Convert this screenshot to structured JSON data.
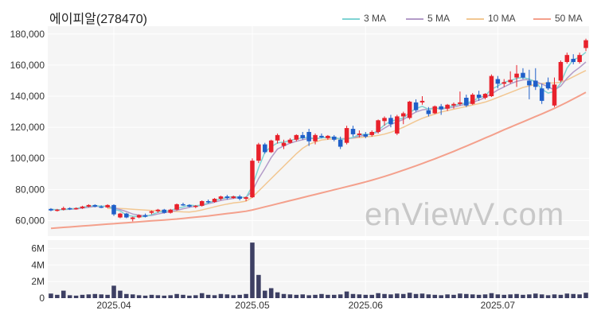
{
  "title": "에이피알(278470)",
  "watermark": "enViewV.com",
  "legend": [
    {
      "label": "3 MA",
      "color": "#7fd3d3"
    },
    {
      "label": "5 MA",
      "color": "#b39bc8"
    },
    {
      "label": "10 MA",
      "color": "#f2c792"
    },
    {
      "label": "50 MA",
      "color": "#f4a08c"
    }
  ],
  "chart_data": [
    {
      "type": "candlestick",
      "title": "에이피알(278470)",
      "ylim": [
        50000,
        185000
      ],
      "y_ticks": [
        60000,
        80000,
        100000,
        120000,
        140000,
        160000,
        180000
      ],
      "y_tick_labels": [
        "60,000",
        "80,000",
        "100,000",
        "120,000",
        "140,000",
        "160,000",
        "180,000"
      ],
      "x_ticks": [
        {
          "label": "2025.04",
          "index": 10
        },
        {
          "label": "2025.05",
          "index": 32
        },
        {
          "label": "2025.06",
          "index": 50
        },
        {
          "label": "2025.07",
          "index": 71
        }
      ],
      "up_color": "#e8212b",
      "down_color": "#1f5fc9",
      "candles": [
        [
          67500,
          68000,
          66000,
          66500
        ],
        [
          66500,
          67500,
          65800,
          67000
        ],
        [
          67000,
          69000,
          66500,
          68000
        ],
        [
          68000,
          68500,
          66800,
          67500
        ],
        [
          67500,
          68500,
          67000,
          68000
        ],
        [
          68000,
          69500,
          67500,
          69000
        ],
        [
          69000,
          70500,
          68500,
          70000
        ],
        [
          70000,
          70500,
          68500,
          69000
        ],
        [
          69000,
          69800,
          68000,
          68500
        ],
        [
          68500,
          70500,
          68000,
          70000
        ],
        [
          70000,
          70500,
          63000,
          64000
        ],
        [
          62000,
          65000,
          61500,
          64500
        ],
        [
          64500,
          65000,
          61500,
          62000
        ],
        [
          61000,
          62500,
          59500,
          62000
        ],
        [
          62000,
          64000,
          61500,
          63500
        ],
        [
          63500,
          64500,
          62000,
          62500
        ],
        [
          65000,
          66500,
          64000,
          66000
        ],
        [
          66000,
          67500,
          65000,
          67000
        ],
        [
          67000,
          67500,
          64500,
          65000
        ],
        [
          65000,
          67500,
          64500,
          67000
        ],
        [
          67000,
          71000,
          66500,
          70500
        ],
        [
          70500,
          71500,
          69500,
          70000
        ],
        [
          70000,
          70500,
          68500,
          69000
        ],
        [
          69000,
          70000,
          68000,
          69500
        ],
        [
          69500,
          73000,
          69000,
          72500
        ],
        [
          72500,
          73500,
          71000,
          72000
        ],
        [
          72000,
          74500,
          71500,
          74000
        ],
        [
          74000,
          76000,
          73000,
          75500
        ],
        [
          75500,
          76500,
          73500,
          74500
        ],
        [
          74500,
          76000,
          74000,
          75500
        ],
        [
          75500,
          76500,
          73000,
          74000
        ],
        [
          74000,
          75500,
          72500,
          75000
        ],
        [
          75000,
          100000,
          74500,
          98500
        ],
        [
          98500,
          110000,
          97000,
          109000
        ],
        [
          109000,
          110000,
          103000,
          104000
        ],
        [
          104000,
          112000,
          103500,
          111500
        ],
        [
          111500,
          116000,
          109500,
          115000
        ],
        [
          108000,
          112000,
          106000,
          110000
        ],
        [
          110000,
          113000,
          109500,
          112000
        ],
        [
          112000,
          115500,
          111000,
          115000
        ],
        [
          115000,
          117000,
          112000,
          113000
        ],
        [
          117000,
          119000,
          108000,
          111000
        ],
        [
          111000,
          116000,
          109000,
          115000
        ],
        [
          114500,
          116000,
          113000,
          113500
        ],
        [
          113000,
          115000,
          112000,
          114500
        ],
        [
          114000,
          115000,
          111000,
          112000
        ],
        [
          112000,
          114000,
          106000,
          107500
        ],
        [
          110000,
          121000,
          109000,
          119500
        ],
        [
          119000,
          121000,
          114000,
          115500
        ],
        [
          115000,
          118000,
          113500,
          116000
        ],
        [
          115500,
          117000,
          113000,
          114000
        ],
        [
          115000,
          118000,
          114000,
          117000
        ],
        [
          117000,
          125000,
          116000,
          124500
        ],
        [
          124000,
          127000,
          121000,
          126000
        ],
        [
          126000,
          128000,
          120000,
          122000
        ],
        [
          116000,
          128000,
          115000,
          127000
        ],
        [
          127000,
          130000,
          122000,
          129000
        ],
        [
          126000,
          137000,
          125000,
          136500
        ],
        [
          136000,
          138000,
          130000,
          131000
        ],
        [
          136000,
          140000,
          134500,
          137000
        ],
        [
          131000,
          133000,
          127000,
          128500
        ],
        [
          129000,
          134000,
          128500,
          133500
        ],
        [
          133500,
          135000,
          128000,
          131500
        ],
        [
          132000,
          135000,
          130500,
          134500
        ],
        [
          134000,
          136000,
          132000,
          135000
        ],
        [
          135000,
          143000,
          134000,
          136000
        ],
        [
          139000,
          141000,
          133000,
          134000
        ],
        [
          135000,
          142000,
          134500,
          141000
        ],
        [
          141000,
          143500,
          137000,
          139000
        ],
        [
          139000,
          142000,
          138000,
          141500
        ],
        [
          140000,
          154000,
          139500,
          153000
        ],
        [
          151000,
          153000,
          145000,
          148000
        ],
        [
          148000,
          151000,
          146000,
          149000
        ],
        [
          149000,
          156000,
          148000,
          150500
        ],
        [
          152000,
          160000,
          146000,
          154500
        ],
        [
          155000,
          158000,
          151000,
          152000
        ],
        [
          150000,
          157000,
          138000,
          147000
        ],
        [
          150000,
          158000,
          144000,
          146000
        ],
        [
          145000,
          148000,
          135000,
          137000
        ],
        [
          149000,
          152000,
          144000,
          145000
        ],
        [
          134000,
          152000,
          133000,
          147500
        ],
        [
          150000,
          163000,
          149000,
          162000
        ],
        [
          162000,
          168000,
          161000,
          166500
        ],
        [
          164000,
          167000,
          160500,
          162000
        ],
        [
          162000,
          168000,
          161000,
          166500
        ],
        [
          171000,
          177000,
          169000,
          176000
        ]
      ],
      "moving_averages": {
        "3 MA": [
          67200,
          67000,
          67100,
          67500,
          67800,
          68500,
          69200,
          69500,
          69300,
          69200,
          67300,
          66200,
          63500,
          62800,
          62500,
          62600,
          63800,
          65300,
          66000,
          66500,
          67800,
          68700,
          70000,
          69500,
          70000,
          71300,
          72800,
          74000,
          74800,
          75400,
          75000,
          74800,
          82200,
          94000,
          104000,
          107500,
          110000,
          110500,
          111500,
          112500,
          113300,
          113600,
          112500,
          113200,
          113500,
          113600,
          112300,
          112600,
          113500,
          115300,
          115500,
          115600,
          118000,
          121500,
          124000,
          124800,
          126000,
          129500,
          132000,
          133500,
          131500,
          132300,
          132000,
          133000,
          133900,
          135000,
          135500,
          137000,
          139000,
          140300,
          144500,
          146500,
          149000,
          150000,
          151500,
          152000,
          151000,
          149000,
          144500,
          142000,
          143000,
          148500,
          158000,
          163500,
          165000,
          168300
        ],
        "5 MA": [
          67000,
          67000,
          67100,
          67300,
          67500,
          68000,
          68500,
          69000,
          69200,
          69200,
          68300,
          67100,
          65800,
          64200,
          63500,
          63000,
          63300,
          64200,
          65000,
          65800,
          66500,
          67600,
          68500,
          69300,
          69800,
          70800,
          71800,
          72900,
          73700,
          74300,
          74800,
          75000,
          79000,
          87000,
          93500,
          100500,
          106000,
          108000,
          109800,
          111000,
          112000,
          112800,
          112800,
          113200,
          113500,
          113400,
          112600,
          112700,
          113200,
          114200,
          115000,
          115800,
          117000,
          119500,
          121800,
          123500,
          125000,
          127500,
          129800,
          131200,
          131800,
          132500,
          131800,
          132200,
          133000,
          134000,
          134800,
          136000,
          137500,
          139200,
          141500,
          144000,
          146000,
          148000,
          149500,
          150500,
          150800,
          149500,
          147800,
          146000,
          144000,
          146500,
          151500,
          155500,
          158500,
          162000
        ],
        "10 MA": [
          null,
          null,
          null,
          null,
          null,
          null,
          null,
          null,
          null,
          67800,
          67900,
          67800,
          67600,
          67300,
          67000,
          66700,
          66500,
          66400,
          66200,
          66000,
          65800,
          65600,
          65500,
          66000,
          66800,
          67800,
          68800,
          69800,
          70600,
          71300,
          71800,
          72500,
          75000,
          79000,
          83000,
          87000,
          91000,
          95000,
          99000,
          103000,
          106500,
          109000,
          110500,
          111800,
          112300,
          112500,
          112600,
          112800,
          113000,
          113400,
          113800,
          114200,
          114800,
          115600,
          116800,
          118300,
          120000,
          122000,
          124000,
          125800,
          127200,
          128500,
          129800,
          130700,
          131600,
          132500,
          133400,
          134300,
          135200,
          136200,
          137600,
          139200,
          140800,
          142400,
          144000,
          145600,
          146600,
          147600,
          148200,
          148500,
          148500,
          149000,
          150500,
          152500,
          154500,
          156500
        ],
        "50 MA": [
          55000,
          55300,
          55600,
          55900,
          56200,
          56500,
          56800,
          57100,
          57400,
          57700,
          58000,
          58300,
          58600,
          58900,
          59200,
          59500,
          59800,
          60100,
          60400,
          60700,
          61000,
          61400,
          61800,
          62200,
          62600,
          63000,
          63500,
          64000,
          64500,
          65000,
          65500,
          66000,
          66800,
          67800,
          68800,
          69800,
          70800,
          71800,
          72800,
          73800,
          74800,
          75800,
          76800,
          77800,
          78800,
          79800,
          80800,
          81800,
          82800,
          83800,
          84900,
          86000,
          87200,
          88400,
          89700,
          91000,
          92400,
          93800,
          95200,
          96700,
          98200,
          99700,
          101300,
          102900,
          104500,
          106200,
          107900,
          109600,
          111300,
          113100,
          114800,
          116600,
          118400,
          120100,
          121800,
          123500,
          125200,
          126900,
          128600,
          130400,
          132200,
          134100,
          136100,
          138200,
          140300,
          142500
        ]
      },
      "volume": {
        "y_ticks": [
          0,
          2,
          4,
          6
        ],
        "y_tick_labels": [
          "0",
          "2M",
          "4M",
          "6M"
        ],
        "unit": "M",
        "values": [
          0.55,
          0.4,
          0.9,
          0.35,
          0.3,
          0.4,
          0.45,
          0.5,
          0.45,
          0.4,
          1.5,
          0.9,
          0.5,
          0.45,
          0.35,
          0.3,
          0.4,
          0.35,
          0.3,
          0.35,
          0.5,
          0.4,
          0.3,
          0.35,
          0.6,
          0.4,
          0.35,
          0.5,
          0.45,
          0.35,
          0.4,
          0.5,
          6.7,
          2.8,
          0.9,
          1.2,
          0.7,
          0.5,
          0.45,
          0.4,
          0.45,
          0.35,
          0.4,
          0.5,
          0.4,
          0.4,
          0.45,
          0.8,
          0.5,
          0.45,
          0.4,
          0.4,
          0.6,
          0.5,
          0.45,
          0.55,
          0.5,
          0.65,
          0.5,
          0.55,
          0.45,
          0.4,
          0.35,
          0.45,
          0.4,
          0.55,
          0.5,
          0.45,
          0.4,
          0.45,
          0.6,
          0.45,
          0.4,
          0.45,
          0.5,
          0.4,
          0.45,
          0.55,
          0.45,
          0.35,
          0.45,
          0.4,
          0.55,
          0.5,
          0.45,
          0.65
        ]
      }
    }
  ]
}
